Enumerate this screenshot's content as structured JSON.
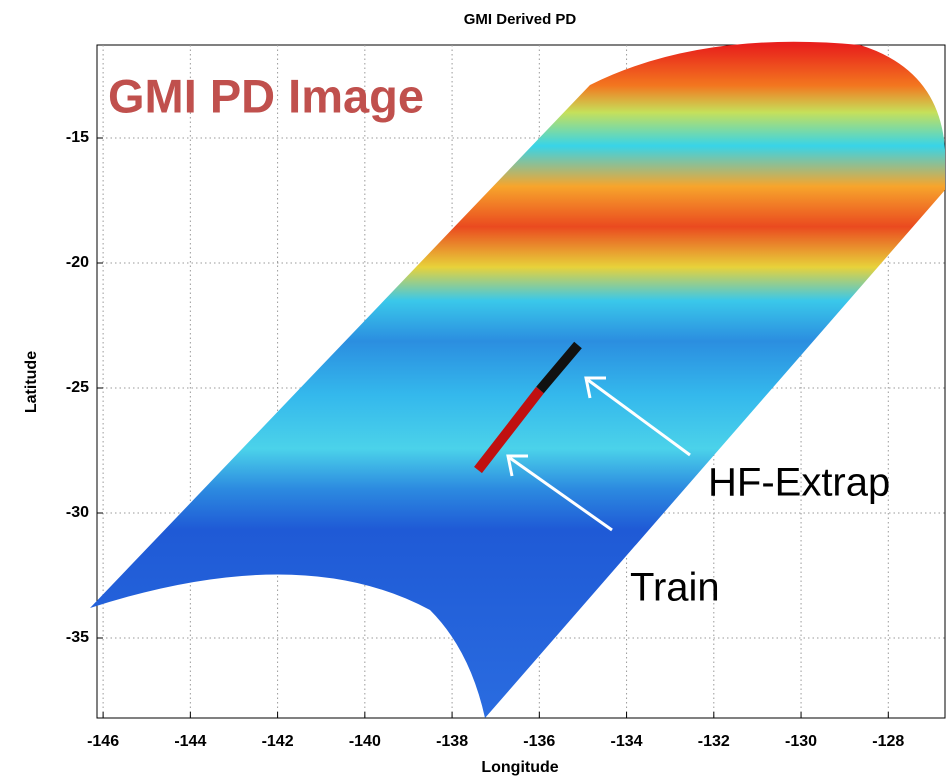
{
  "chart_data": {
    "type": "map",
    "title": "GMI Derived PD",
    "xlabel": "Longitude",
    "ylabel": "Latitude",
    "xlim": [
      -146.14,
      -126.7
    ],
    "ylim": [
      -38.2,
      -11.28
    ],
    "xticks": [
      -146,
      -144,
      -142,
      -140,
      -138,
      -136,
      -134,
      -132,
      -130,
      -128
    ],
    "yticks": [
      -35,
      -30,
      -25,
      -20,
      -15
    ],
    "grid": true,
    "annotations": [
      "GMI PD Image",
      "HF-Extrap",
      "Train"
    ]
  }
}
